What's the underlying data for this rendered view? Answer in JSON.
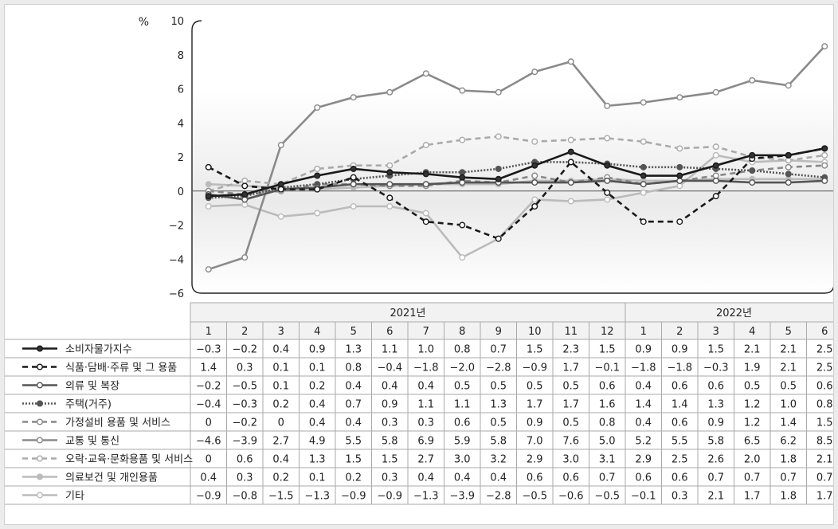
{
  "chart_data": {
    "type": "line",
    "ylabel": "%",
    "ylim": [
      -6,
      10
    ],
    "yticks": [
      -6,
      -4,
      -2,
      0,
      2,
      4,
      6,
      8,
      10
    ],
    "years": [
      {
        "label": "2021년",
        "months": 12
      },
      {
        "label": "2022년",
        "months": 6
      }
    ],
    "categories": [
      "1",
      "2",
      "3",
      "4",
      "5",
      "6",
      "7",
      "8",
      "9",
      "10",
      "11",
      "12",
      "1",
      "2",
      "3",
      "4",
      "5",
      "6"
    ],
    "series": [
      {
        "name": "소비자물가지수",
        "color": "#1a1a1a",
        "dash": "solid",
        "marker": "#333333",
        "labels": [
          "−0.3",
          "−0.2",
          "0.4",
          "0.9",
          "1.3",
          "1.1",
          "1.0",
          "0.8",
          "0.7",
          "1.5",
          "2.3",
          "1.5",
          "0.9",
          "0.9",
          "1.5",
          "2.1",
          "2.1",
          "2.5"
        ],
        "values": [
          -0.3,
          -0.2,
          0.4,
          0.9,
          1.3,
          1.1,
          1.0,
          0.8,
          0.7,
          1.5,
          2.3,
          1.5,
          0.9,
          0.9,
          1.5,
          2.1,
          2.1,
          2.5
        ]
      },
      {
        "name": "식품·담배·주류 및 그 용품",
        "color": "#1a1a1a",
        "dash": "dashed",
        "marker": "#ffffff",
        "labels": [
          "1.4",
          "0.3",
          "0.1",
          "0.1",
          "0.8",
          "−0.4",
          "−1.8",
          "−2.0",
          "−2.8",
          "−0.9",
          "1.7",
          "−0.1",
          "−1.8",
          "−1.8",
          "−0.3",
          "1.9",
          "2.1",
          "2.5"
        ],
        "values": [
          1.4,
          0.3,
          0.1,
          0.1,
          0.8,
          -0.4,
          -1.8,
          -2.0,
          -2.8,
          -0.9,
          1.7,
          -0.1,
          -1.8,
          -1.8,
          -0.3,
          1.9,
          2.1,
          2.5
        ]
      },
      {
        "name": "의류 및 복장",
        "color": "#555555",
        "dash": "solid",
        "marker": "#ffffff",
        "labels": [
          "−0.2",
          "−0.5",
          "0.1",
          "0.2",
          "0.4",
          "0.4",
          "0.4",
          "0.5",
          "0.5",
          "0.5",
          "0.5",
          "0.6",
          "0.4",
          "0.6",
          "0.6",
          "0.5",
          "0.5",
          "0.6"
        ],
        "values": [
          -0.2,
          -0.5,
          0.1,
          0.2,
          0.4,
          0.4,
          0.4,
          0.5,
          0.5,
          0.5,
          0.5,
          0.6,
          0.4,
          0.6,
          0.6,
          0.5,
          0.5,
          0.6
        ]
      },
      {
        "name": "주택(거주)",
        "color": "#555555",
        "dash": "dotted",
        "marker": "#555555",
        "labels": [
          "−0.4",
          "−0.3",
          "0.2",
          "0.4",
          "0.7",
          "0.9",
          "1.1",
          "1.1",
          "1.3",
          "1.7",
          "1.7",
          "1.6",
          "1.4",
          "1.4",
          "1.3",
          "1.2",
          "1.0",
          "0.8"
        ],
        "values": [
          -0.4,
          -0.3,
          0.2,
          0.4,
          0.7,
          0.9,
          1.1,
          1.1,
          1.3,
          1.7,
          1.7,
          1.6,
          1.4,
          1.4,
          1.3,
          1.2,
          1.0,
          0.8
        ]
      },
      {
        "name": "가정설비 용품 및 서비스",
        "color": "#888888",
        "dash": "dashed",
        "marker": "#ffffff",
        "labels": [
          "0",
          "−0.2",
          "0",
          "0.4",
          "0.4",
          "0.3",
          "0.3",
          "0.6",
          "0.5",
          "0.9",
          "0.5",
          "0.8",
          "0.4",
          "0.6",
          "0.9",
          "1.2",
          "1.4",
          "1.5"
        ],
        "values": [
          0,
          -0.2,
          0,
          0.4,
          0.4,
          0.3,
          0.3,
          0.6,
          0.5,
          0.9,
          0.5,
          0.8,
          0.4,
          0.6,
          0.9,
          1.2,
          1.4,
          1.5
        ]
      },
      {
        "name": "교통 및 통신",
        "color": "#8a8a8a",
        "dash": "solid",
        "marker": "#ffffff",
        "labels": [
          "−4.6",
          "−3.9",
          "2.7",
          "4.9",
          "5.5",
          "5.8",
          "6.9",
          "5.9",
          "5.8",
          "7.0",
          "7.6",
          "5.0",
          "5.2",
          "5.5",
          "5.8",
          "6.5",
          "6.2",
          "8.5"
        ],
        "values": [
          -4.6,
          -3.9,
          2.7,
          4.9,
          5.5,
          5.8,
          6.9,
          5.9,
          5.8,
          7.0,
          7.6,
          5.0,
          5.2,
          5.5,
          5.8,
          6.5,
          6.2,
          8.5
        ]
      },
      {
        "name": "오락·교육·문화용품 및 서비스",
        "color": "#aaaaaa",
        "dash": "dashed",
        "marker": "#ffffff",
        "labels": [
          "0",
          "0.6",
          "0.4",
          "1.3",
          "1.5",
          "1.5",
          "2.7",
          "3.0",
          "3.2",
          "2.9",
          "3.0",
          "3.1",
          "2.9",
          "2.5",
          "2.6",
          "2.0",
          "1.8",
          "2.1"
        ],
        "values": [
          0,
          0.6,
          0.4,
          1.3,
          1.5,
          1.5,
          2.7,
          3.0,
          3.2,
          2.9,
          3.0,
          3.1,
          2.9,
          2.5,
          2.6,
          2.0,
          1.8,
          2.1
        ]
      },
      {
        "name": "의료보건 및 개인용품",
        "color": "#bbbbbb",
        "dash": "solid",
        "marker": "#bbbbbb",
        "labels": [
          "0.4",
          "0.3",
          "0.2",
          "0.1",
          "0.2",
          "0.3",
          "0.4",
          "0.4",
          "0.4",
          "0.6",
          "0.6",
          "0.7",
          "0.6",
          "0.6",
          "0.7",
          "0.7",
          "0.7",
          "0.7"
        ],
        "values": [
          0.4,
          0.3,
          0.2,
          0.1,
          0.2,
          0.3,
          0.4,
          0.4,
          0.4,
          0.6,
          0.6,
          0.7,
          0.6,
          0.6,
          0.7,
          0.7,
          0.7,
          0.7
        ]
      },
      {
        "name": "기타",
        "color": "#bbbbbb",
        "dash": "solid",
        "marker": "#ffffff",
        "labels": [
          "−0.9",
          "−0.8",
          "−1.5",
          "−1.3",
          "−0.9",
          "−0.9",
          "−1.3",
          "−3.9",
          "−2.8",
          "−0.5",
          "−0.6",
          "−0.5",
          "−0.1",
          "0.3",
          "2.1",
          "1.7",
          "1.8",
          "1.7"
        ],
        "values": [
          -0.9,
          -0.8,
          -1.5,
          -1.3,
          -0.9,
          -0.9,
          -1.3,
          -3.9,
          -2.8,
          -0.5,
          -0.6,
          -0.5,
          -0.1,
          0.3,
          2.1,
          1.7,
          1.8,
          1.7
        ]
      }
    ]
  }
}
